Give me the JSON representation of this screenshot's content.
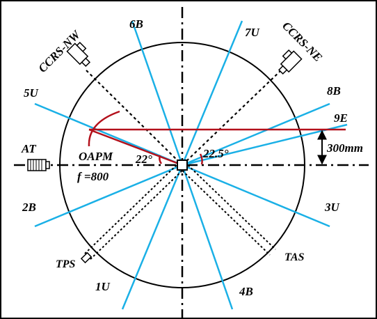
{
  "colors": {
    "beam_blue": "#1ab0e6",
    "laser_red": "#b3101b",
    "ink": "#000000"
  },
  "beam_labels": {
    "b6": "6B",
    "u7": "7U",
    "u5": "5U",
    "b8": "8B",
    "e9": "9E",
    "b2": "2B",
    "u3": "3U",
    "u1": "1U",
    "b4": "4B"
  },
  "instruments": {
    "ccrs_nw": "CCRS-NW",
    "ccrs_ne": "CCRS-NE",
    "at": "AT",
    "tps": "TPS",
    "tas": "TAS",
    "oapm": "OAPM",
    "focal": "f =800"
  },
  "annotations": {
    "angle_22": "22°",
    "angle_22_5": "22.5°",
    "offset": "300mm"
  }
}
